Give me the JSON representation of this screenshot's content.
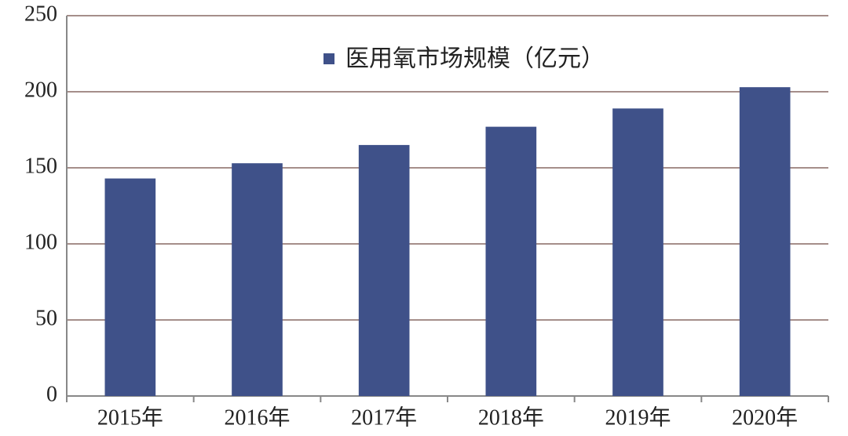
{
  "chart_data": {
    "type": "bar",
    "categories": [
      "2015年",
      "2016年",
      "2017年",
      "2018年",
      "2019年",
      "2020年"
    ],
    "series": [
      {
        "name": "医用氧市场规模（亿元）",
        "color": "#3f5189",
        "values": [
          143,
          153,
          165,
          177,
          189,
          203
        ]
      }
    ],
    "ylim": [
      0,
      250
    ],
    "yticks": [
      0,
      50,
      100,
      150,
      200,
      250
    ],
    "grid": true,
    "grid_color": "#a58e8a",
    "legend": "top"
  }
}
